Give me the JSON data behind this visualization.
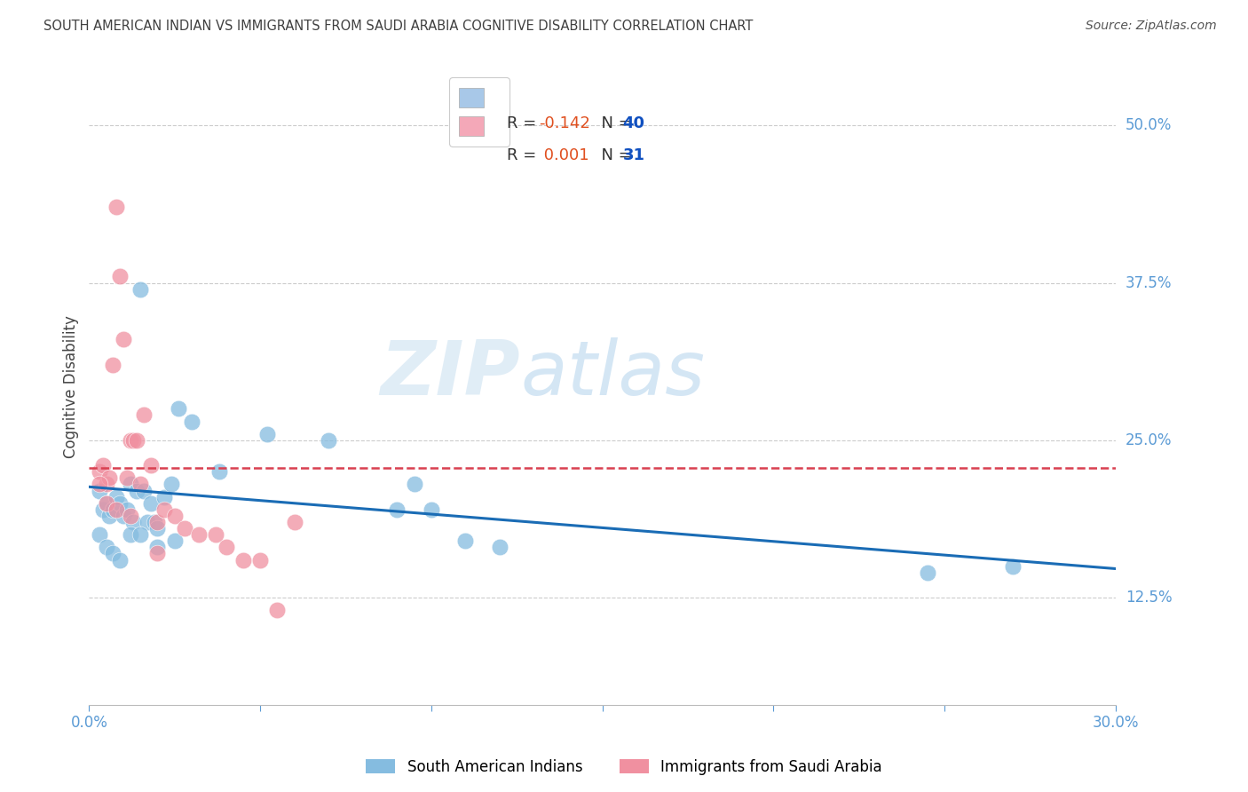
{
  "title": "SOUTH AMERICAN INDIAN VS IMMIGRANTS FROM SAUDI ARABIA COGNITIVE DISABILITY CORRELATION CHART",
  "source": "Source: ZipAtlas.com",
  "ylabel": "Cognitive Disability",
  "ytick_labels": [
    "12.5%",
    "25.0%",
    "37.5%",
    "50.0%"
  ],
  "ytick_values": [
    0.125,
    0.25,
    0.375,
    0.5
  ],
  "xmin": 0.0,
  "xmax": 0.3,
  "ymin": 0.04,
  "ymax": 0.545,
  "legend1_r": "R = -0.142",
  "legend1_n": "N = 40",
  "legend2_r": "R =  0.001",
  "legend2_n": "N = 31",
  "legend1_patch_color": "#a8c8e8",
  "legend2_patch_color": "#f4a8b8",
  "scatter_blue_x": [
    0.003,
    0.004,
    0.005,
    0.006,
    0.007,
    0.008,
    0.009,
    0.01,
    0.011,
    0.012,
    0.013,
    0.014,
    0.015,
    0.016,
    0.017,
    0.018,
    0.019,
    0.02,
    0.022,
    0.024,
    0.026,
    0.03,
    0.038,
    0.052,
    0.07,
    0.09,
    0.095,
    0.1,
    0.11,
    0.12,
    0.003,
    0.005,
    0.007,
    0.009,
    0.012,
    0.015,
    0.02,
    0.025,
    0.245,
    0.27
  ],
  "scatter_blue_y": [
    0.21,
    0.195,
    0.2,
    0.19,
    0.195,
    0.205,
    0.2,
    0.19,
    0.195,
    0.215,
    0.185,
    0.21,
    0.37,
    0.21,
    0.185,
    0.2,
    0.185,
    0.18,
    0.205,
    0.215,
    0.275,
    0.265,
    0.225,
    0.255,
    0.25,
    0.195,
    0.215,
    0.195,
    0.17,
    0.165,
    0.175,
    0.165,
    0.16,
    0.155,
    0.175,
    0.175,
    0.165,
    0.17,
    0.145,
    0.15
  ],
  "scatter_pink_x": [
    0.003,
    0.004,
    0.005,
    0.006,
    0.007,
    0.008,
    0.009,
    0.01,
    0.011,
    0.012,
    0.013,
    0.014,
    0.015,
    0.016,
    0.018,
    0.02,
    0.022,
    0.025,
    0.028,
    0.032,
    0.037,
    0.04,
    0.045,
    0.05,
    0.055,
    0.06,
    0.003,
    0.005,
    0.008,
    0.012,
    0.02
  ],
  "scatter_pink_y": [
    0.225,
    0.23,
    0.215,
    0.22,
    0.31,
    0.435,
    0.38,
    0.33,
    0.22,
    0.25,
    0.25,
    0.25,
    0.215,
    0.27,
    0.23,
    0.185,
    0.195,
    0.19,
    0.18,
    0.175,
    0.175,
    0.165,
    0.155,
    0.155,
    0.115,
    0.185,
    0.215,
    0.2,
    0.195,
    0.19,
    0.16
  ],
  "blue_line_x": [
    0.0,
    0.3
  ],
  "blue_line_y": [
    0.213,
    0.148
  ],
  "pink_line_x": [
    0.0,
    0.3
  ],
  "pink_line_y": [
    0.228,
    0.228
  ],
  "background_color": "#ffffff",
  "grid_color": "#cccccc",
  "title_color": "#404040",
  "axis_tick_color": "#5b9bd5",
  "scatter_blue_color": "#85bce0",
  "scatter_pink_color": "#f090a0",
  "trend_blue_color": "#1a6cb5",
  "trend_pink_color": "#d94050",
  "watermark_zip": "ZIP",
  "watermark_atlas": "atlas",
  "legend_r_color": "#e06030",
  "legend_n_color": "#2060c0",
  "bottom_legend_blue_label": "South American Indians",
  "bottom_legend_pink_label": "Immigrants from Saudi Arabia"
}
